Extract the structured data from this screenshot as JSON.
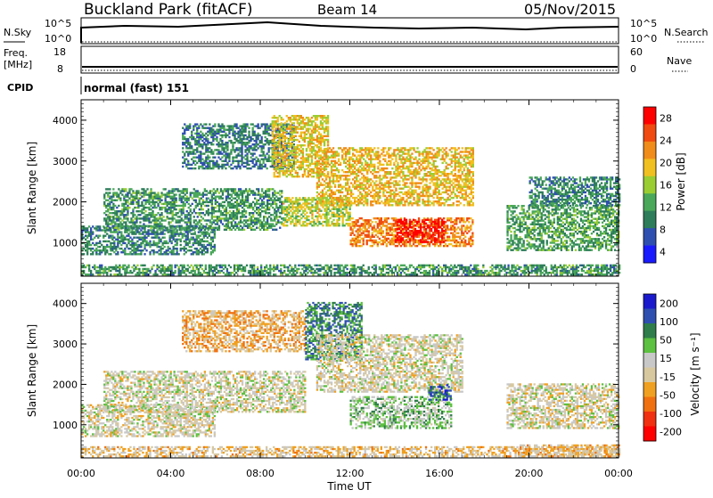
{
  "header": {
    "station": "Buckland Park (fitACF)",
    "beam": "Beam 14",
    "date": "05/Nov/2015"
  },
  "strips": {
    "nsky": {
      "label": "N.Sky",
      "left_ticks": [
        "10^5",
        "10^0"
      ],
      "right_ticks": [
        "10^5",
        "10^0"
      ],
      "right_label": "N.Search"
    },
    "freq": {
      "label": "Freq.",
      "unit": "[MHz]",
      "left_ticks": [
        "18",
        "8"
      ],
      "right_ticks": [
        "60",
        "0"
      ],
      "right_label": "Nave"
    },
    "cpid": {
      "label": "CPID",
      "text": "normal (fast) 151"
    }
  },
  "colors": {
    "power_scale": [
      "#1a1aff",
      "#2f4fb0",
      "#2e7d5a",
      "#4aa85a",
      "#9acd32",
      "#f0c020",
      "#f08c1a",
      "#f04a10",
      "#ff0000"
    ],
    "velocity_scale": [
      "#1a1acc",
      "#2f4fb0",
      "#2e7d4a",
      "#5cc040",
      "#c8c8c8",
      "#d8c8a0",
      "#f0a020",
      "#f07010",
      "#f03010",
      "#ff0000"
    ]
  },
  "chart_data": [
    {
      "type": "heatmap",
      "panel": "power",
      "xlabel": "Time UT",
      "ylabel": "Slant Range [km]",
      "x_ticks": [
        "00:00",
        "04:00",
        "08:00",
        "12:00",
        "16:00",
        "20:00",
        "00:00"
      ],
      "x_range_hours": [
        0,
        24
      ],
      "y_ticks": [
        "1000",
        "2000",
        "3000",
        "4000"
      ],
      "y_range_km": [
        180,
        4500
      ],
      "colorbar": {
        "label": "Power [dB]",
        "ticks": [
          "28",
          "24",
          "20",
          "16",
          "12",
          "8",
          "4"
        ],
        "range": [
          0,
          30
        ]
      },
      "regions": [
        {
          "t": [
            0.0,
            24.0
          ],
          "r": [
            200,
            450
          ],
          "level": 10
        },
        {
          "t": [
            0.0,
            6.0
          ],
          "r": [
            700,
            1400
          ],
          "level": 9
        },
        {
          "t": [
            1.0,
            9.0
          ],
          "r": [
            1300,
            2300
          ],
          "level": 10
        },
        {
          "t": [
            4.5,
            9.5
          ],
          "r": [
            2800,
            3900
          ],
          "level": 8
        },
        {
          "t": [
            8.5,
            11.0
          ],
          "r": [
            2600,
            4100
          ],
          "level": 18
        },
        {
          "t": [
            9.0,
            12.0
          ],
          "r": [
            1400,
            2100
          ],
          "level": 16
        },
        {
          "t": [
            10.5,
            17.5
          ],
          "r": [
            1900,
            3300
          ],
          "level": 19
        },
        {
          "t": [
            12.0,
            17.5
          ],
          "r": [
            900,
            1600
          ],
          "level": 22
        },
        {
          "t": [
            14.0,
            16.2
          ],
          "r": [
            1000,
            1550
          ],
          "level": 28
        },
        {
          "t": [
            19.0,
            24.0
          ],
          "r": [
            800,
            1900
          ],
          "level": 11
        },
        {
          "t": [
            20.0,
            24.0
          ],
          "r": [
            1900,
            2600
          ],
          "level": 9
        }
      ]
    },
    {
      "type": "heatmap",
      "panel": "velocity",
      "xlabel": "Time UT",
      "ylabel": "Slant Range [km]",
      "x_ticks": [
        "00:00",
        "04:00",
        "08:00",
        "12:00",
        "16:00",
        "20:00",
        "00:00"
      ],
      "x_range_hours": [
        0,
        24
      ],
      "y_ticks": [
        "1000",
        "2000",
        "3000",
        "4000"
      ],
      "y_range_km": [
        180,
        4500
      ],
      "colorbar": {
        "label": "Velocity [m s⁻¹]",
        "ticks": [
          "200",
          "100",
          "50",
          "15",
          "-15",
          "-50",
          "-100",
          "-200"
        ],
        "range": [
          -250,
          250
        ]
      },
      "regions": [
        {
          "t": [
            0.0,
            24.0
          ],
          "r": [
            200,
            450
          ],
          "level": -40
        },
        {
          "t": [
            0.0,
            6.0
          ],
          "r": [
            700,
            1500
          ],
          "level": 0
        },
        {
          "t": [
            1.0,
            10.0
          ],
          "r": [
            1300,
            2300
          ],
          "level": 5
        },
        {
          "t": [
            4.5,
            10.0
          ],
          "r": [
            2800,
            3800
          ],
          "level": -60
        },
        {
          "t": [
            10.0,
            12.5
          ],
          "r": [
            2600,
            4000
          ],
          "level": 130
        },
        {
          "t": [
            10.5,
            17.0
          ],
          "r": [
            1800,
            3200
          ],
          "level": 0
        },
        {
          "t": [
            12.0,
            16.5
          ],
          "r": [
            900,
            1700
          ],
          "level": 60
        },
        {
          "t": [
            15.5,
            16.5
          ],
          "r": [
            1600,
            2000
          ],
          "level": 160
        },
        {
          "t": [
            19.0,
            24.0
          ],
          "r": [
            900,
            2000
          ],
          "level": 0
        },
        {
          "t": [
            19.5,
            24.0
          ],
          "r": [
            200,
            500
          ],
          "level": -45
        }
      ]
    }
  ]
}
